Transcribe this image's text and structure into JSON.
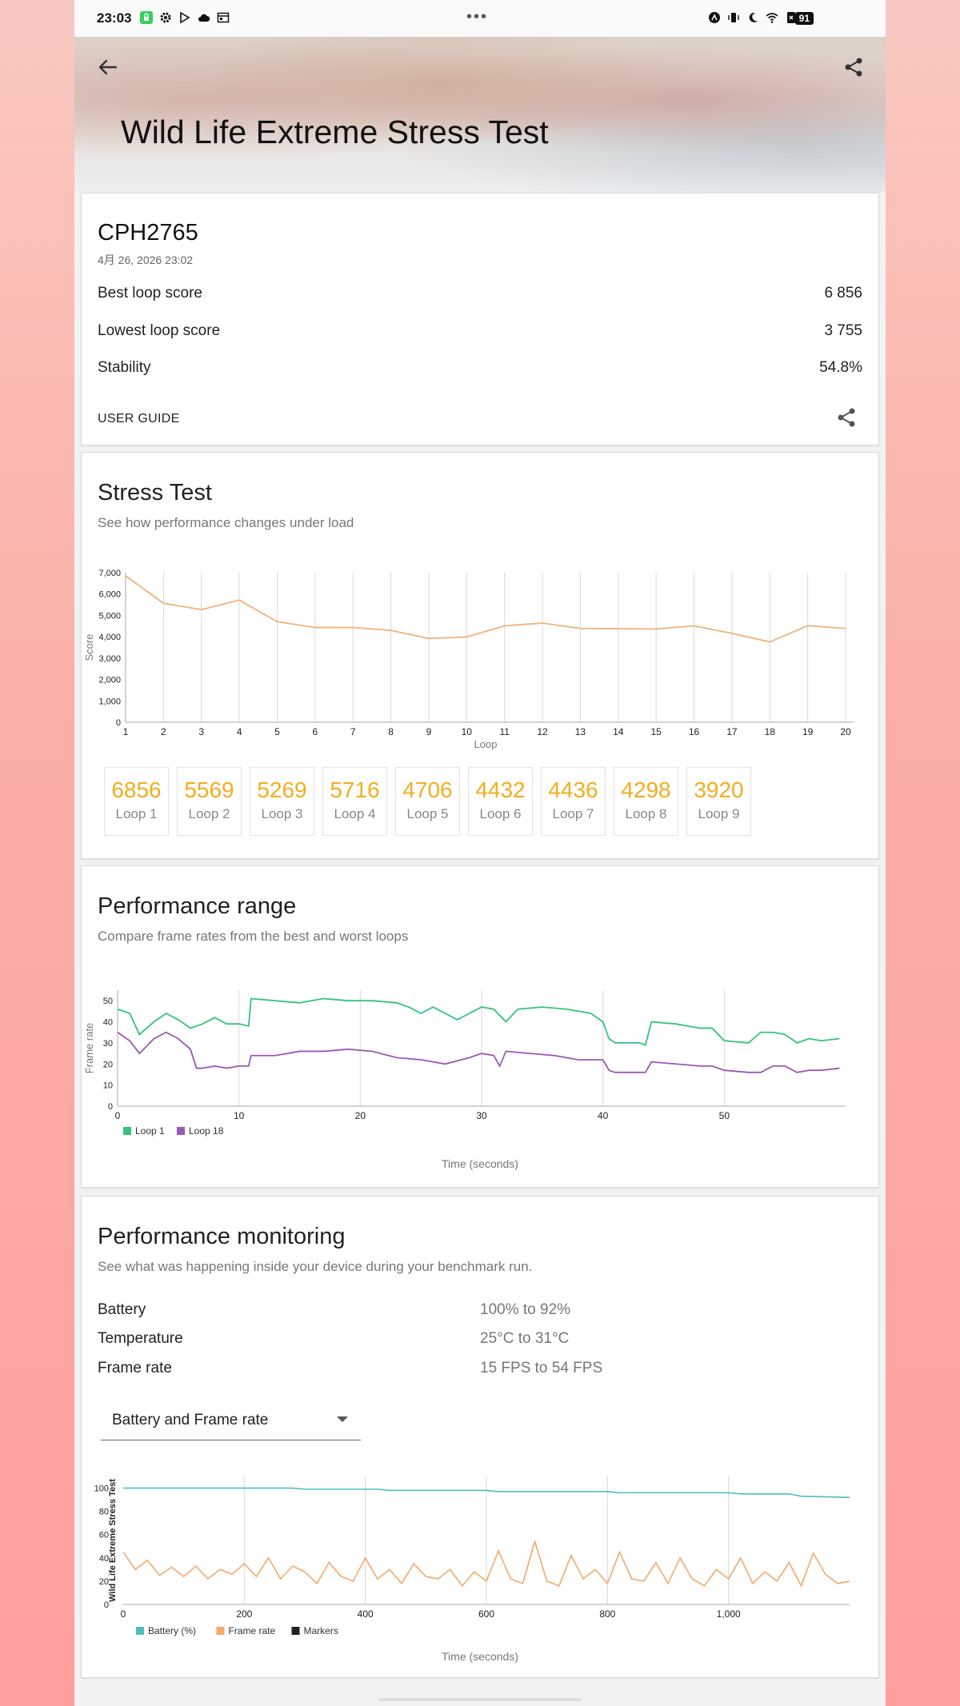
{
  "status_bar": {
    "time": "23:03",
    "dots": "•••",
    "battery": "91",
    "icons": [
      "lock-app-icon",
      "gear-icon",
      "play-store-icon",
      "cloud-icon",
      "calendar-icon",
      "nfc-icon",
      "vibrate-icon",
      "moon-icon",
      "wifi-icon",
      "sim-x-icon"
    ]
  },
  "header": {
    "title": "Wild Life Extreme Stress Test",
    "back_icon": "arrow-left-icon",
    "share_icon": "share-icon"
  },
  "summary": {
    "device": "CPH2765",
    "date": "4月 26, 2026 23:02",
    "rows": [
      {
        "label": "Best loop score",
        "value": "6 856"
      },
      {
        "label": "Lowest loop score",
        "value": "3 755"
      },
      {
        "label": "Stability",
        "value": "54.8%"
      }
    ],
    "user_guide": "USER GUIDE"
  },
  "stress_test": {
    "title": "Stress Test",
    "subtitle": "See how performance changes under load",
    "loops": [
      {
        "value": "6856",
        "label": "Loop 1"
      },
      {
        "value": "5569",
        "label": "Loop 2"
      },
      {
        "value": "5269",
        "label": "Loop 3"
      },
      {
        "value": "5716",
        "label": "Loop 4"
      },
      {
        "value": "4706",
        "label": "Loop 5"
      },
      {
        "value": "4432",
        "label": "Loop 6"
      },
      {
        "value": "4436",
        "label": "Loop 7"
      },
      {
        "value": "4298",
        "label": "Loop 8"
      },
      {
        "value": "3920",
        "label": "Loop 9"
      }
    ]
  },
  "performance_range": {
    "title": "Performance range",
    "subtitle": "Compare frame rates from the best and worst loops"
  },
  "monitoring": {
    "title": "Performance monitoring",
    "subtitle": "See what was happening inside your device during your benchmark run.",
    "rows": [
      {
        "label": "Battery",
        "value": "100% to 92%"
      },
      {
        "label": "Temperature",
        "value": "25°C to 31°C"
      },
      {
        "label": "Frame rate",
        "value": "15 FPS to 54 FPS"
      }
    ],
    "dropdown_selected": "Battery and Frame rate"
  },
  "chart_data": [
    {
      "type": "line",
      "xlabel": "Loop",
      "ylabel": "Score",
      "x": [
        1,
        2,
        3,
        4,
        5,
        6,
        7,
        8,
        9,
        10,
        11,
        12,
        13,
        14,
        15,
        16,
        17,
        18,
        19,
        20
      ],
      "ylim": [
        0,
        7000
      ],
      "yticks": [
        "0",
        "1,000",
        "2,000",
        "3,000",
        "4,000",
        "5,000",
        "6,000",
        "7,000"
      ],
      "series": [
        {
          "values": [
            6856,
            5569,
            5269,
            5716,
            4706,
            4432,
            4436,
            4298,
            3920,
            3990,
            4510,
            4640,
            4390,
            4380,
            4360,
            4510,
            4160,
            3755,
            4520,
            4390
          ],
          "color": "#f0b27a"
        }
      ],
      "grid": true
    },
    {
      "type": "line",
      "xlabel": "Time (seconds)",
      "ylabel": "Frame rate",
      "ylim": [
        0,
        55
      ],
      "xlim": [
        0,
        60
      ],
      "xticks": [
        "0",
        "10",
        "20",
        "30",
        "40",
        "50"
      ],
      "yticks": [
        "0",
        "10",
        "20",
        "30",
        "40",
        "50"
      ],
      "legend": "bottom-left",
      "series": [
        {
          "name": "Loop 1",
          "color": "#36c37a",
          "x": [
            0,
            1,
            1.8,
            3,
            4,
            5,
            6,
            7,
            8,
            9,
            10,
            10.8,
            11,
            13,
            15,
            17,
            19,
            21,
            23,
            24,
            25,
            26,
            28,
            30,
            31,
            32,
            33,
            35,
            37,
            39,
            40,
            40.5,
            41,
            43,
            43.5,
            44,
            46,
            48,
            49,
            50,
            52,
            53,
            54,
            55,
            56,
            57,
            58,
            59.5
          ],
          "values": [
            46,
            44,
            34,
            40,
            44,
            41,
            37,
            39,
            42,
            39,
            39,
            38,
            51,
            50,
            49,
            51,
            50,
            50,
            49,
            47,
            44,
            47,
            41,
            47,
            46,
            40,
            46,
            47,
            46,
            44,
            40,
            32,
            30,
            30,
            29,
            40,
            39,
            37,
            37,
            31,
            30,
            35,
            35,
            34,
            30,
            32,
            31,
            32
          ]
        },
        {
          "name": "Loop 18",
          "color": "#9b59b6",
          "x": [
            0,
            1,
            1.8,
            3,
            4,
            5,
            6,
            6.5,
            7,
            8,
            9,
            10,
            10.8,
            11,
            13,
            15,
            17,
            19,
            21,
            23,
            25,
            27,
            29,
            30,
            31,
            31.5,
            32,
            34,
            36,
            38,
            40,
            40.5,
            41,
            43,
            43.5,
            44,
            46,
            48,
            49,
            50,
            52,
            53,
            54,
            55,
            56,
            57,
            58,
            59.5
          ],
          "values": [
            35,
            31,
            25,
            32,
            35,
            32,
            27,
            18,
            18,
            19,
            18,
            19,
            19,
            24,
            24,
            26,
            26,
            27,
            26,
            23,
            22,
            20,
            23,
            25,
            24,
            19,
            26,
            25,
            24,
            22,
            22,
            17,
            16,
            16,
            16,
            21,
            20,
            19,
            19,
            17,
            16,
            16,
            19,
            19,
            16,
            17,
            17,
            18
          ]
        }
      ],
      "grid": true
    },
    {
      "type": "line",
      "xlabel": "Time (seconds)",
      "ylabel": "Wild Life Extreme Stress Test",
      "xlim": [
        0,
        1200
      ],
      "ylim": [
        0,
        110
      ],
      "xticks": [
        "0",
        "200",
        "400",
        "600",
        "800",
        "1,000"
      ],
      "yticks": [
        "0",
        "20",
        "40",
        "60",
        "80",
        "100"
      ],
      "legend": "bottom-left",
      "legend_entries": [
        {
          "name": "Battery (%)",
          "color": "#4dbdbd"
        },
        {
          "name": "Frame rate",
          "color": "#f5a86b"
        },
        {
          "name": "Markers",
          "color": "#222222"
        }
      ],
      "series": [
        {
          "name": "Battery (%)",
          "color": "#4dbdbd",
          "x": [
            0,
            280,
            300,
            420,
            440,
            600,
            620,
            800,
            820,
            1000,
            1020,
            1100,
            1120,
            1200
          ],
          "values": [
            100,
            100,
            99,
            99,
            98,
            98,
            97,
            97,
            96,
            96,
            95,
            95,
            93,
            92
          ]
        },
        {
          "name": "Frame rate",
          "color": "#f5a86b",
          "x": [
            0,
            20,
            40,
            60,
            80,
            100,
            120,
            140,
            160,
            180,
            200,
            220,
            240,
            260,
            280,
            300,
            320,
            340,
            360,
            380,
            400,
            420,
            440,
            460,
            480,
            500,
            520,
            540,
            560,
            580,
            600,
            620,
            640,
            660,
            680,
            700,
            720,
            740,
            760,
            780,
            800,
            820,
            840,
            860,
            880,
            900,
            920,
            940,
            960,
            980,
            1000,
            1020,
            1040,
            1060,
            1080,
            1100,
            1120,
            1140,
            1160,
            1180,
            1200
          ],
          "values": [
            45,
            30,
            38,
            25,
            32,
            24,
            33,
            22,
            30,
            26,
            35,
            24,
            40,
            22,
            33,
            28,
            18,
            36,
            24,
            20,
            40,
            22,
            30,
            18,
            35,
            24,
            22,
            30,
            16,
            28,
            20,
            46,
            22,
            18,
            54,
            20,
            16,
            42,
            22,
            30,
            18,
            45,
            22,
            20,
            36,
            18,
            40,
            22,
            16,
            30,
            22,
            40,
            18,
            28,
            20,
            36,
            16,
            44,
            26,
            18,
            20
          ]
        }
      ],
      "grid": true
    }
  ]
}
